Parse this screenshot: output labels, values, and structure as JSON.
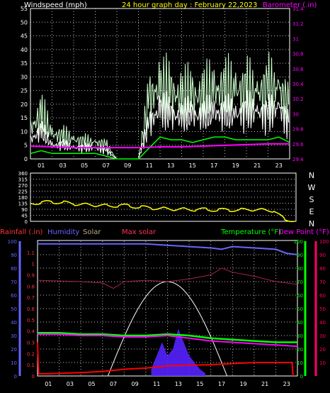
{
  "header": {
    "wind_label": "Windspeed (mph)",
    "graph_title": "24 hour graph day : February 22,2023",
    "baro_label": "Barometer (.in)"
  },
  "lower_header": {
    "rain_label": "Rainfall (.in)",
    "humidity_label": "Humidity",
    "solar_label": "Solar",
    "maxsolar_label": "Max solar",
    "temp_label": "Temperature (°F)",
    "dew_label": "Dew Point (°F)"
  },
  "colors": {
    "background": "#000000",
    "grid": "#bbbbbb",
    "wind": "#ffffff",
    "gust": "#ccffcc",
    "wind_avg": "#00ff00",
    "barometer": "#ff00ff",
    "direction": "#ffff00",
    "rain": "#ff0000",
    "humidity": "#6666ff",
    "solar": "#ffffff",
    "max_solar": "#aa2244",
    "temperature": "#00ff00",
    "dewpoint": "#ff00ff",
    "title": "#ffff00",
    "temp_axis": "#00ff00",
    "dew_axis": "#ff0066"
  },
  "chart_data": [
    {
      "type": "line",
      "id": "wind",
      "xlabel": "",
      "x_ticks": [
        "01",
        "03",
        "05",
        "07",
        "09",
        "11",
        "13",
        "15",
        "17",
        "19",
        "21",
        "23"
      ],
      "ylabel": "Windspeed (mph)",
      "ylim": [
        0,
        55
      ],
      "y_ticks": [
        0,
        5,
        10,
        15,
        20,
        25,
        30,
        35,
        40,
        45,
        50,
        55
      ],
      "y2label": "Barometer (.in)",
      "y2lim": [
        29.4,
        31.4
      ],
      "y2_ticks": [
        "29.4",
        "29.6",
        "29.8",
        "30",
        "30.2",
        "30.4",
        "30.6",
        "30.8",
        "31",
        "31.2",
        "31.4"
      ],
      "series": [
        {
          "name": "wind",
          "x": [
            0,
            1,
            2,
            3,
            4,
            5,
            6,
            7,
            8,
            9,
            10,
            11,
            12,
            13,
            14,
            15,
            16,
            17,
            18,
            19,
            20,
            21,
            22,
            23,
            24
          ],
          "values": [
            7,
            10,
            5,
            5,
            4,
            4,
            4,
            3,
            0,
            0,
            0,
            13,
            18,
            16,
            15,
            16,
            15,
            17,
            16,
            16,
            17,
            17,
            16,
            19,
            12
          ]
        },
        {
          "name": "gust",
          "x": [
            0,
            1,
            2,
            3,
            4,
            5,
            6,
            7,
            8,
            9,
            10,
            11,
            12,
            13,
            14,
            15,
            16,
            17,
            18,
            19,
            20,
            21,
            22,
            23,
            24
          ],
          "values": [
            11,
            16,
            9,
            8,
            7,
            6,
            6,
            5,
            0,
            0,
            0,
            22,
            26,
            24,
            22,
            23,
            22,
            25,
            24,
            25,
            24,
            24,
            25,
            26,
            18
          ]
        },
        {
          "name": "wind_avg",
          "x": [
            0,
            1,
            2,
            3,
            4,
            5,
            6,
            7,
            8,
            9,
            10,
            11,
            12,
            13,
            14,
            15,
            16,
            17,
            18,
            19,
            20,
            21,
            22,
            23,
            24
          ],
          "values": [
            2,
            3,
            2,
            2,
            2,
            2,
            2,
            1,
            0,
            0,
            0,
            4,
            8,
            7,
            7,
            6,
            7,
            8,
            8,
            7,
            7,
            7,
            7,
            8,
            6
          ]
        },
        {
          "name": "barometer",
          "x": [
            0,
            2,
            4,
            6,
            8,
            10,
            12,
            14,
            16,
            18,
            20,
            22,
            24
          ],
          "values": [
            29.57,
            29.56,
            29.55,
            29.55,
            29.55,
            29.55,
            29.56,
            29.56,
            29.57,
            29.58,
            29.59,
            29.6,
            29.6
          ]
        }
      ]
    },
    {
      "type": "line",
      "id": "direction",
      "ylabel": "",
      "ylim": [
        0,
        360
      ],
      "y_ticks": [
        0,
        45,
        90,
        135,
        180,
        225,
        270,
        315,
        360
      ],
      "compass_labels": [
        "N",
        "W",
        "S",
        "E",
        "N"
      ],
      "series": [
        {
          "name": "direction",
          "x": [
            0,
            1,
            2,
            3,
            4,
            5,
            6,
            7,
            8,
            9,
            10,
            11,
            12,
            13,
            14,
            15,
            16,
            17,
            18,
            19,
            20,
            21,
            22,
            23,
            24
          ],
          "values": [
            135,
            140,
            145,
            140,
            130,
            125,
            120,
            115,
            118,
            115,
            105,
            100,
            95,
            90,
            90,
            88,
            88,
            85,
            85,
            85,
            88,
            85,
            80,
            10,
            10
          ]
        }
      ]
    },
    {
      "type": "line",
      "id": "lower",
      "x_ticks": [
        "01",
        "03",
        "05",
        "07",
        "09",
        "11",
        "13",
        "15",
        "17",
        "19",
        "21",
        "23"
      ],
      "y_rain_ticks": [
        "0",
        "0.1",
        "0.2",
        "0.3",
        "0.4",
        "0.5",
        "0.6",
        "0.7",
        "0.8",
        "0.9",
        "1",
        "1.1"
      ],
      "rain_lim": [
        0,
        1.2
      ],
      "y_hum_ticks": [
        0,
        10,
        20,
        30,
        40,
        50,
        60,
        70,
        80,
        90,
        100
      ],
      "hum_lim": [
        0,
        100
      ],
      "y_temp_ticks": [
        0,
        10,
        20,
        30,
        40,
        50,
        60,
        70,
        80,
        90,
        100
      ],
      "temp_lim": [
        0,
        100
      ],
      "y_dew_ticks": [
        10,
        20,
        30,
        40,
        50,
        60,
        70,
        80,
        90,
        100
      ],
      "series": [
        {
          "name": "humidity",
          "x": [
            0,
            2,
            4,
            6,
            8,
            10,
            12,
            14,
            16,
            17,
            18,
            20,
            22,
            23,
            24
          ],
          "values": [
            98,
            98,
            98,
            98,
            98,
            98,
            97,
            96,
            95,
            94,
            96,
            95,
            94,
            91,
            90
          ]
        },
        {
          "name": "temperature",
          "x": [
            0,
            2,
            4,
            6,
            8,
            10,
            12,
            14,
            16,
            18,
            20,
            22,
            24
          ],
          "values": [
            32,
            32,
            31,
            31,
            30,
            30,
            31,
            30,
            28,
            27,
            26,
            25,
            25
          ]
        },
        {
          "name": "dewpoint",
          "x": [
            0,
            2,
            4,
            6,
            8,
            10,
            12,
            14,
            16,
            18,
            20,
            22,
            24
          ],
          "values": [
            31,
            31,
            30,
            30,
            29,
            29,
            30,
            28,
            26,
            25,
            24,
            23,
            22
          ]
        },
        {
          "name": "max_solar",
          "x": [
            0,
            4,
            6,
            7,
            8,
            10,
            12,
            14,
            16,
            17,
            18,
            20,
            22,
            24
          ],
          "values": [
            71,
            70,
            69,
            65,
            70,
            71,
            70,
            72,
            75,
            80,
            77,
            74,
            70,
            68
          ]
        },
        {
          "name": "solar",
          "x": [
            0,
            6,
            7,
            8,
            9,
            10,
            11,
            12,
            13,
            14,
            15,
            16,
            17,
            18,
            20,
            22,
            24
          ],
          "values": [
            0,
            0,
            0.05,
            0.15,
            0.3,
            0.45,
            0.6,
            0.7,
            0.65,
            0.5,
            0.3,
            0.15,
            0.08,
            0,
            0,
            0,
            0
          ]
        },
        {
          "name": "solar_obs",
          "x": [
            10.5,
            11,
            11.5,
            12,
            12.5,
            13,
            13.5,
            14,
            14.5,
            15,
            15.5
          ],
          "values": [
            0.05,
            0.15,
            0.25,
            0.15,
            0.2,
            0.35,
            0.25,
            0.15,
            0.1,
            0.05,
            0.02
          ]
        },
        {
          "name": "rain",
          "x": [
            0,
            0.1,
            1,
            4,
            6,
            7,
            8,
            10,
            12,
            16,
            20,
            23.5,
            23.6
          ],
          "values": [
            0.3,
            0.02,
            0.02,
            0.03,
            0.04,
            0.05,
            0.06,
            0.07,
            0.09,
            0.1,
            0.12,
            0.12,
            0
          ]
        }
      ]
    }
  ]
}
